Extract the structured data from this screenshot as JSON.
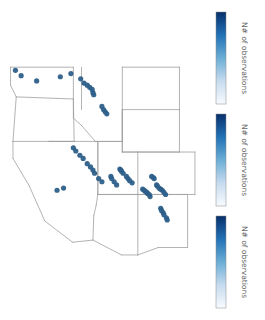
{
  "chart_data": {
    "type": "scatter",
    "color": "#2d5f8a",
    "xlim": [
      -125.5,
      -100.5
    ],
    "ylim": [
      31.0,
      49.5
    ],
    "tick_labels": false,
    "x": [
      -124.1,
      -123.4,
      -121.5,
      -118.6,
      -117.3,
      -116.1,
      -115.7,
      -115.3,
      -115.0,
      -114.7,
      -114.6,
      -114.5,
      -113.5,
      -113.3,
      -113.1,
      -112.9,
      -117.0,
      -116.7,
      -116.2,
      -115.8,
      -115.3,
      -114.9,
      -114.6,
      -114.4,
      -113.9,
      -113.5,
      -112.4,
      -112.3,
      -112.0,
      -111.7,
      -111.3,
      -111.2,
      -111.1,
      -110.9,
      -110.5,
      -110.3,
      -110.1,
      -109.8,
      -108.5,
      -108.3,
      -108.2,
      -108.0,
      -107.9,
      -107.7,
      -107.6,
      -107.4,
      -107.2,
      -107.1,
      -106.3,
      -106.2,
      -106.0,
      -105.9,
      -105.6,
      -105.5,
      -106.8,
      -106.7,
      -106.5,
      -106.3,
      -106.1,
      -105.9,
      -105.7,
      -118.2,
      -119.0
    ],
    "y": [
      48.7,
      48.2,
      47.7,
      48.1,
      48.4,
      47.9,
      47.5,
      47.3,
      47.1,
      46.9,
      46.6,
      46.4,
      45.3,
      45.0,
      44.8,
      44.6,
      41.4,
      41.1,
      40.7,
      40.4,
      39.9,
      39.6,
      39.3,
      39.0,
      38.5,
      38.2,
      38.7,
      38.5,
      38.2,
      37.9,
      39.4,
      39.3,
      39.2,
      39.0,
      38.7,
      38.5,
      38.3,
      38.1,
      37.5,
      37.4,
      37.3,
      37.2,
      37.1,
      37.0,
      36.8,
      38.7,
      38.6,
      38.5,
      35.7,
      35.5,
      35.3,
      35.1,
      34.8,
      34.6,
      37.9,
      37.8,
      37.6,
      37.5,
      37.4,
      37.2,
      37.0,
      37.6,
      37.4
    ],
    "borders": [
      [
        [
          -124.7,
          49.0
        ],
        [
          -117.0,
          49.0
        ]
      ],
      [
        [
          -117.0,
          49.0
        ],
        [
          -117.0,
          46.0
        ]
      ],
      [
        [
          -117.0,
          46.0
        ],
        [
          -124.0,
          46.2
        ]
      ],
      [
        [
          -124.0,
          46.2
        ],
        [
          -124.7,
          47.3
        ]
      ],
      [
        [
          -124.7,
          47.3
        ],
        [
          -124.7,
          49.0
        ]
      ],
      [
        [
          -124.0,
          46.2
        ],
        [
          -124.4,
          42.0
        ]
      ],
      [
        [
          -117.0,
          46.0
        ],
        [
          -116.9,
          42.0
        ]
      ],
      [
        [
          -124.4,
          42.0
        ],
        [
          -116.9,
          42.0
        ]
      ],
      [
        [
          -124.4,
          42.0
        ],
        [
          -124.4,
          40.4
        ]
      ],
      [
        [
          -124.4,
          40.4
        ],
        [
          -122.4,
          37.8
        ]
      ],
      [
        [
          -122.4,
          37.8
        ],
        [
          -120.5,
          34.5
        ]
      ],
      [
        [
          -120.5,
          34.5
        ],
        [
          -117.1,
          32.5
        ]
      ],
      [
        [
          -117.1,
          32.5
        ],
        [
          -114.6,
          32.7
        ]
      ],
      [
        [
          -114.6,
          32.7
        ],
        [
          -114.5,
          35.0
        ]
      ],
      [
        [
          -114.5,
          35.0
        ],
        [
          -114.2,
          36.0
        ]
      ],
      [
        [
          -114.2,
          36.0
        ],
        [
          -114.0,
          37.0
        ]
      ],
      [
        [
          -120.0,
          42.0
        ],
        [
          -114.0,
          42.0
        ]
      ],
      [
        [
          -114.0,
          42.0
        ],
        [
          -114.0,
          37.0
        ]
      ],
      [
        [
          -116.9,
          42.0
        ],
        [
          -120.0,
          42.0
        ]
      ],
      [
        [
          -117.0,
          46.0
        ],
        [
          -117.0,
          44.2
        ]
      ],
      [
        [
          -117.0,
          44.2
        ],
        [
          -116.0,
          43.5
        ]
      ],
      [
        [
          -116.0,
          43.5
        ],
        [
          -114.3,
          42.0
        ]
      ],
      [
        [
          -114.3,
          42.0
        ],
        [
          -114.0,
          42.0
        ]
      ],
      [
        [
          -114.0,
          42.0
        ],
        [
          -111.0,
          42.0
        ]
      ],
      [
        [
          -111.0,
          42.0
        ],
        [
          -111.0,
          49.0
        ]
      ],
      [
        [
          -111.0,
          49.0
        ],
        [
          -104.0,
          49.0
        ]
      ],
      [
        [
          -104.0,
          49.0
        ],
        [
          -104.0,
          45.0
        ]
      ],
      [
        [
          -104.0,
          45.0
        ],
        [
          -111.0,
          45.0
        ]
      ],
      [
        [
          -111.0,
          45.0
        ],
        [
          -111.0,
          42.0
        ]
      ],
      [
        [
          -111.0,
          41.0
        ],
        [
          -104.0,
          41.0
        ]
      ],
      [
        [
          -104.0,
          41.0
        ],
        [
          -104.0,
          45.0
        ]
      ],
      [
        [
          -111.0,
          41.0
        ],
        [
          -111.0,
          45.0
        ]
      ],
      [
        [
          -114.0,
          42.0
        ],
        [
          -111.0,
          42.0
        ]
      ],
      [
        [
          -111.0,
          42.0
        ],
        [
          -111.0,
          41.0
        ]
      ],
      [
        [
          -111.0,
          41.0
        ],
        [
          -109.1,
          41.0
        ]
      ],
      [
        [
          -109.1,
          41.0
        ],
        [
          -109.1,
          37.0
        ]
      ],
      [
        [
          -109.1,
          37.0
        ],
        [
          -114.0,
          37.0
        ]
      ],
      [
        [
          -114.0,
          37.0
        ],
        [
          -114.0,
          42.0
        ]
      ],
      [
        [
          -109.1,
          41.0
        ],
        [
          -102.1,
          41.0
        ]
      ],
      [
        [
          -102.1,
          41.0
        ],
        [
          -102.1,
          37.0
        ]
      ],
      [
        [
          -102.1,
          37.0
        ],
        [
          -109.1,
          37.0
        ]
      ],
      [
        [
          -114.0,
          37.0
        ],
        [
          -109.1,
          37.0
        ]
      ],
      [
        [
          -109.1,
          37.0
        ],
        [
          -109.1,
          31.3
        ]
      ],
      [
        [
          -109.1,
          31.3
        ],
        [
          -111.1,
          31.3
        ]
      ],
      [
        [
          -111.1,
          31.3
        ],
        [
          -114.6,
          32.7
        ]
      ],
      [
        [
          -109.1,
          37.0
        ],
        [
          -103.0,
          37.0
        ]
      ],
      [
        [
          -103.0,
          37.0
        ],
        [
          -103.0,
          32.0
        ]
      ],
      [
        [
          -103.0,
          32.0
        ],
        [
          -106.6,
          32.0
        ]
      ],
      [
        [
          -106.6,
          32.0
        ],
        [
          -109.1,
          31.3
        ]
      ],
      [
        [
          -116.0,
          49.0
        ],
        [
          -116.0,
          45.0
        ]
      ]
    ],
    "colorbars": [
      {
        "label": "N# of observations",
        "range": [
          0,
          1
        ]
      },
      {
        "label": "N# of observations",
        "range": [
          0,
          1
        ]
      },
      {
        "label": "N# of observations",
        "range": [
          0,
          1
        ]
      }
    ]
  }
}
